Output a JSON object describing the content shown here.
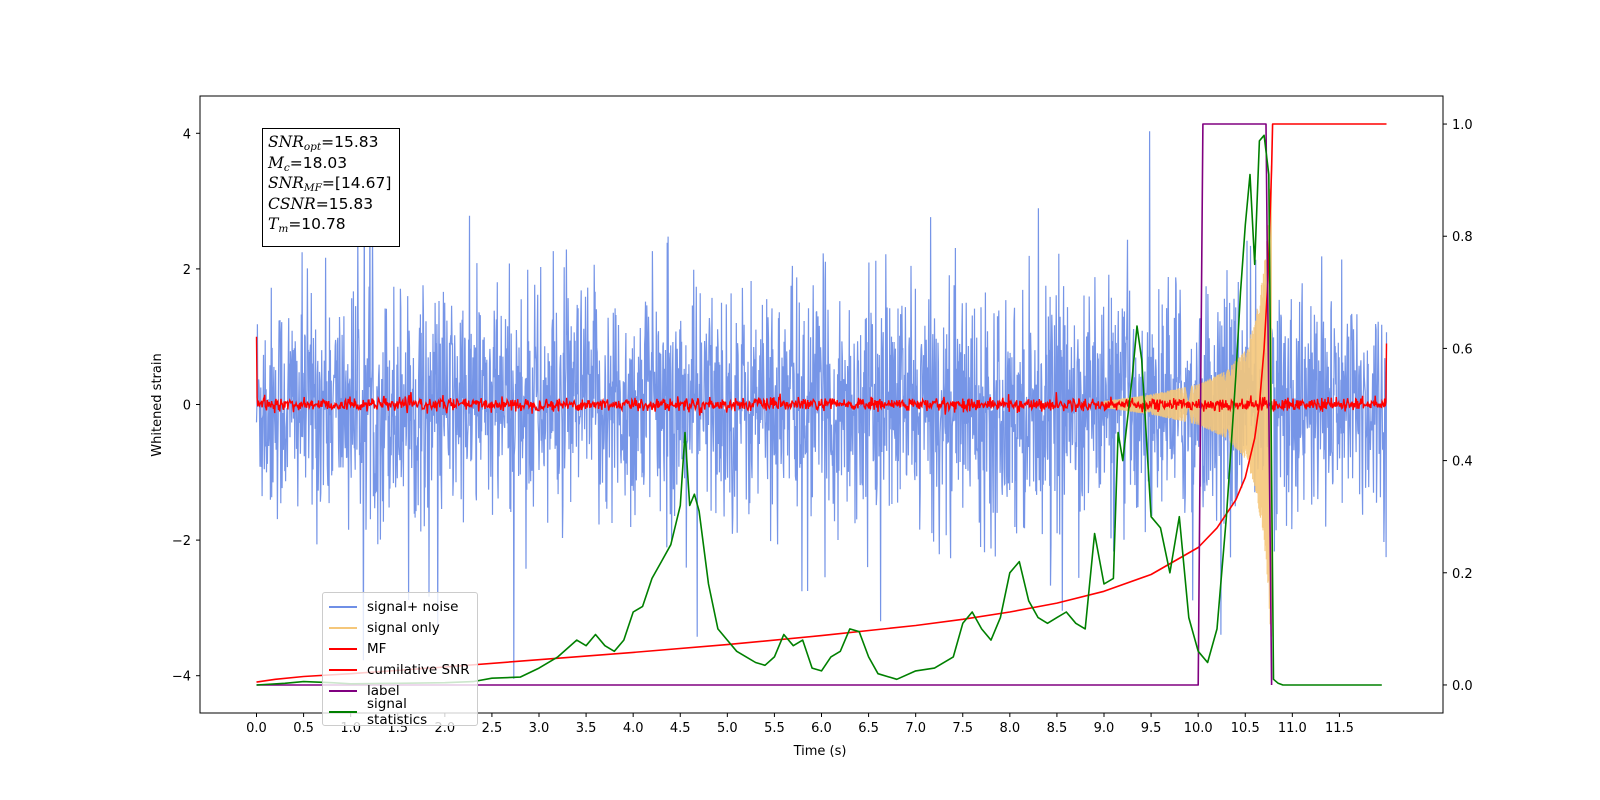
{
  "chart_data": {
    "type": "line",
    "xlabel": "Time (s)",
    "ylabel": "Whitened strain",
    "xlim": [
      -0.6,
      12.6
    ],
    "ylim_left": [
      -4.55,
      4.55
    ],
    "ylim_right": [
      -0.05,
      1.05
    ],
    "x_ticks": [
      "0.0",
      "0.5",
      "1.0",
      "1.5",
      "2.0",
      "2.5",
      "3.0",
      "3.5",
      "4.0",
      "4.5",
      "5.0",
      "5.5",
      "6.0",
      "6.5",
      "7.0",
      "7.5",
      "8.0",
      "8.5",
      "9.0",
      "9.5",
      "10.0",
      "10.5",
      "11.0",
      "11.5"
    ],
    "y_ticks_left": [
      "-4",
      "-2",
      "0",
      "2",
      "4"
    ],
    "y_ticks_right": [
      "0.0",
      "0.2",
      "0.4",
      "0.6",
      "0.8",
      "1.0"
    ],
    "annotation": {
      "snr_opt_sym": "SNR",
      "snr_opt_sub": "opt",
      "snr_opt_val": "=15.83",
      "mc_sym": "M",
      "mc_sub": "c",
      "mc_val": "=18.03",
      "snr_mf_sym": "SNR",
      "snr_mf_sub": "MF",
      "snr_mf_val": "=[14.67]",
      "csnr_sym": "CSNR",
      "csnr_val": "=15.83",
      "tm_sym": "T",
      "tm_sub": "m",
      "tm_val": "=10.78"
    },
    "series": [
      {
        "name": "signal+ noise",
        "color": "#6f8fe6",
        "axis": "left",
        "noise_envelope": {
          "x_range": [
            0.0,
            12.0
          ],
          "typical_abs": [
            1.3,
            1.7
          ],
          "max": 4.03,
          "min": -4.1
        }
      },
      {
        "name": "signal only",
        "color": "#f5c77a",
        "axis": "left",
        "envelope": {
          "x": [
            9.0,
            9.5,
            10.0,
            10.3,
            10.5,
            10.6,
            10.7,
            10.75,
            10.78
          ],
          "amp": [
            0.05,
            0.15,
            0.3,
            0.5,
            0.8,
            1.2,
            2.0,
            3.0,
            3.6
          ]
        }
      },
      {
        "name": "MF",
        "color": "#ff0000",
        "axis": "left",
        "noise_band": 0.08,
        "edge_values": {
          "start": 1.0,
          "end": 0.9
        }
      },
      {
        "name": "cumilative SNR",
        "color": "#ff0000",
        "axis": "right",
        "x": [
          0.0,
          0.2,
          0.5,
          1.0,
          2.0,
          3.0,
          4.0,
          5.0,
          6.0,
          7.0,
          7.5,
          8.0,
          8.5,
          9.0,
          9.5,
          10.0,
          10.2,
          10.4,
          10.5,
          10.6,
          10.65,
          10.7,
          10.74,
          10.78,
          10.79,
          12.0
        ],
        "values": [
          0.005,
          0.01,
          0.015,
          0.02,
          0.032,
          0.045,
          0.058,
          0.072,
          0.088,
          0.106,
          0.117,
          0.13,
          0.146,
          0.167,
          0.197,
          0.245,
          0.28,
          0.33,
          0.37,
          0.44,
          0.5,
          0.6,
          0.72,
          0.92,
          1.0,
          1.0
        ]
      },
      {
        "name": "label",
        "color": "#800080",
        "axis": "right",
        "x": [
          0.0,
          10.0,
          10.05,
          10.72,
          10.78
        ],
        "values": [
          0.0,
          0.0,
          1.0,
          1.0,
          0.0
        ]
      },
      {
        "name": "signal statistics",
        "color": "#008000",
        "axis": "right",
        "x": [
          0.0,
          0.3,
          0.5,
          0.8,
          1.0,
          1.5,
          2.0,
          2.3,
          2.5,
          2.8,
          3.0,
          3.2,
          3.4,
          3.5,
          3.6,
          3.7,
          3.8,
          3.9,
          4.0,
          4.1,
          4.2,
          4.3,
          4.4,
          4.5,
          4.55,
          4.6,
          4.65,
          4.7,
          4.8,
          4.9,
          5.0,
          5.1,
          5.2,
          5.3,
          5.4,
          5.5,
          5.6,
          5.7,
          5.8,
          5.9,
          6.0,
          6.1,
          6.2,
          6.3,
          6.4,
          6.5,
          6.6,
          6.8,
          7.0,
          7.2,
          7.4,
          7.5,
          7.6,
          7.7,
          7.8,
          7.9,
          8.0,
          8.1,
          8.2,
          8.3,
          8.4,
          8.5,
          8.6,
          8.7,
          8.8,
          8.9,
          9.0,
          9.1,
          9.15,
          9.2,
          9.3,
          9.35,
          9.4,
          9.5,
          9.6,
          9.7,
          9.8,
          9.9,
          10.0,
          10.1,
          10.2,
          10.3,
          10.4,
          10.45,
          10.5,
          10.55,
          10.6,
          10.65,
          10.7,
          10.75,
          10.8,
          10.85,
          10.9,
          11.0,
          11.5,
          11.95
        ],
        "values": [
          0.0,
          0.003,
          0.006,
          0.004,
          0.002,
          0.003,
          0.004,
          0.006,
          0.012,
          0.014,
          0.03,
          0.05,
          0.08,
          0.07,
          0.09,
          0.07,
          0.06,
          0.08,
          0.13,
          0.14,
          0.19,
          0.22,
          0.25,
          0.32,
          0.45,
          0.32,
          0.34,
          0.31,
          0.18,
          0.1,
          0.08,
          0.06,
          0.05,
          0.04,
          0.035,
          0.05,
          0.09,
          0.07,
          0.08,
          0.03,
          0.025,
          0.05,
          0.06,
          0.1,
          0.095,
          0.05,
          0.02,
          0.01,
          0.025,
          0.03,
          0.05,
          0.11,
          0.13,
          0.1,
          0.08,
          0.12,
          0.2,
          0.22,
          0.15,
          0.12,
          0.11,
          0.12,
          0.13,
          0.11,
          0.1,
          0.27,
          0.18,
          0.19,
          0.45,
          0.4,
          0.55,
          0.64,
          0.58,
          0.3,
          0.28,
          0.2,
          0.3,
          0.12,
          0.06,
          0.04,
          0.1,
          0.3,
          0.55,
          0.7,
          0.82,
          0.91,
          0.75,
          0.97,
          0.98,
          0.91,
          0.01,
          0.003,
          0.0,
          0.0,
          0.0,
          0.0
        ]
      }
    ],
    "legend": {
      "position": "lower-left",
      "entries": [
        "signal+ noise",
        "signal only",
        "MF",
        "cumilative SNR",
        "label",
        "signal statistics"
      ]
    }
  }
}
